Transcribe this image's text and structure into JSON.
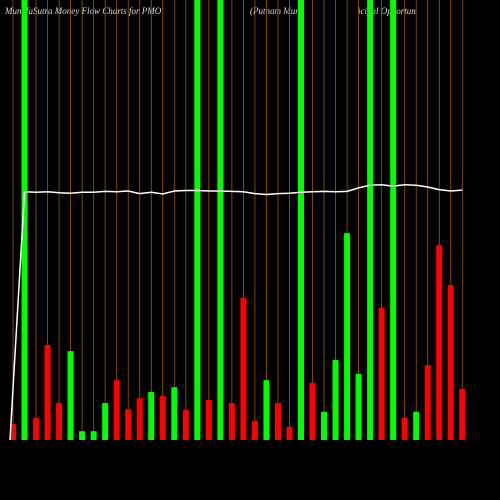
{
  "chart_data": {
    "type": "bar",
    "title": "MunafaSutra  Money Flow  Charts for PMO",
    "subtitle": "(Putnam Mun",
    "subtitle2": "icipal Opportun",
    "ylim": [
      0,
      100
    ],
    "values": [
      3.6,
      100,
      5,
      21.6,
      8.4,
      20.2,
      2,
      2,
      8.4,
      13.6,
      7,
      9.5,
      10.9,
      10,
      12,
      6.8,
      100,
      9.1,
      100,
      8.4,
      32.3,
      4.3,
      13.6,
      8.4,
      3,
      100,
      13,
      6.4,
      18.2,
      47,
      15,
      100,
      30,
      100,
      5,
      6.4,
      17,
      44.3,
      35.2,
      11.6
    ],
    "colors": [
      "#ff0000",
      "#00ff00",
      "#ff0000",
      "#ff0000",
      "#ff0000",
      "#00ff00",
      "#00ff00",
      "#00ff00",
      "#00ff00",
      "#ff0000",
      "#ff0000",
      "#ff0000",
      "#00ff00",
      "#ff0000",
      "#00ff00",
      "#ff0000",
      "#00ff00",
      "#ff0000",
      "#00ff00",
      "#ff0000",
      "#ff0000",
      "#ff0000",
      "#00ff00",
      "#ff0000",
      "#ff0000",
      "#00ff00",
      "#ff0000",
      "#00ff00",
      "#00ff00",
      "#00ff00",
      "#00ff00",
      "#00ff00",
      "#ff0000",
      "#00ff00",
      "#ff0000",
      "#00ff00",
      "#ff0000",
      "#ff0000",
      "#ff0000",
      "#ff0000"
    ],
    "line": {
      "color": "#ffffff",
      "values": [
        0,
        56.4,
        56.3,
        56.4,
        56.2,
        56.1,
        56.3,
        56.3,
        56.5,
        56.4,
        56.6,
        56,
        56.3,
        55.9,
        56.6,
        56.7,
        56.7,
        56.6,
        56.6,
        56.5,
        56.4,
        56,
        55.8,
        56,
        56.1,
        56.3,
        56.4,
        56.5,
        56.4,
        56.5,
        57.3,
        57.9,
        58,
        57.7,
        58,
        57.9,
        57.5,
        56.9,
        56.6,
        56.8
      ]
    },
    "guide_color": "#a05a00"
  }
}
